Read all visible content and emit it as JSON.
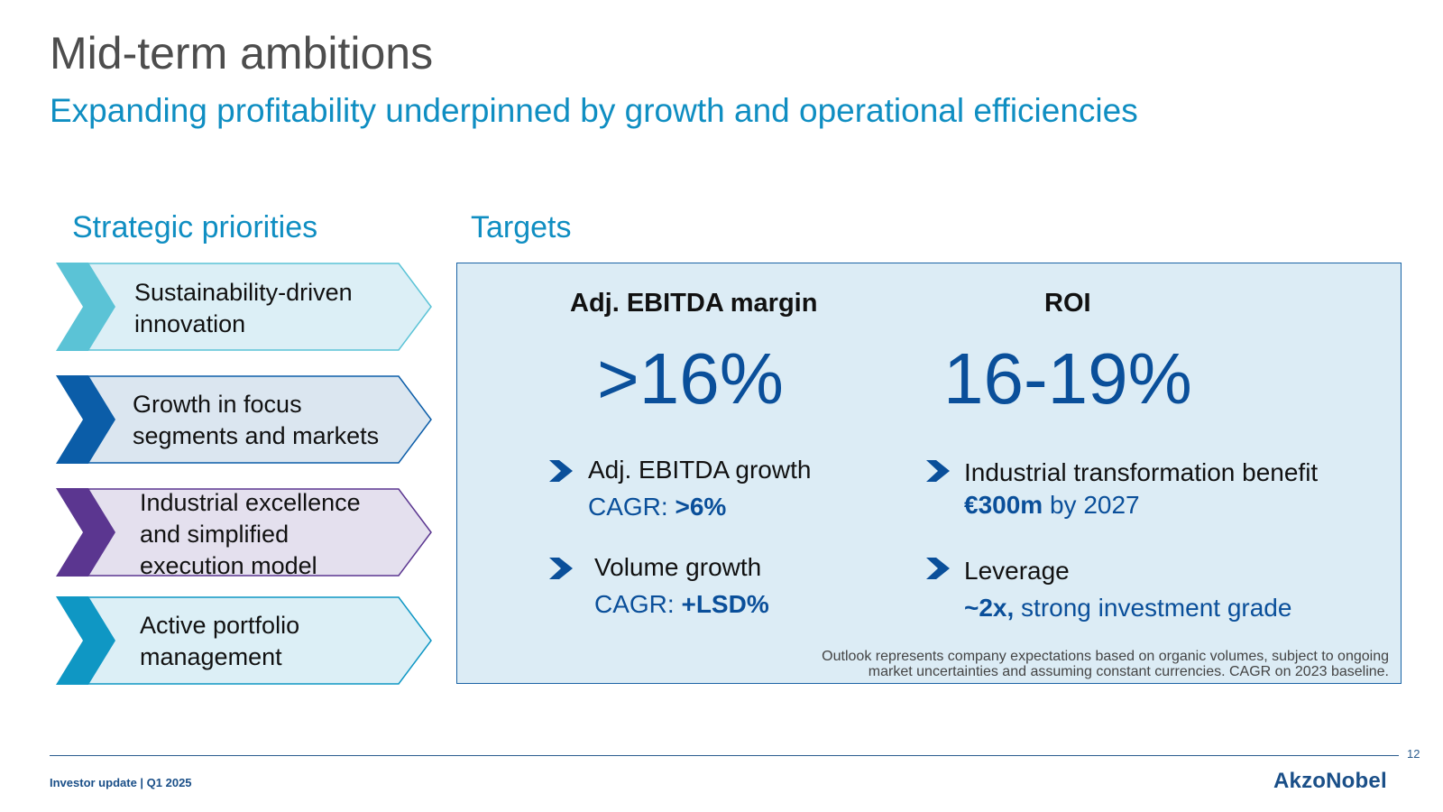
{
  "header": {
    "title": "Mid-term ambitions",
    "subtitle": "Expanding profitability underpinned by growth and operational efficiencies"
  },
  "priorities": {
    "heading": "Strategic priorities",
    "items": [
      {
        "label_lines": [
          "Sustainability-driven",
          "innovation"
        ],
        "accent": "#5bc3d6",
        "fill": "#dceff6"
      },
      {
        "label_lines": [
          "Growth in focus",
          "segments and markets"
        ],
        "accent": "#0b5da8",
        "fill": "#dbe6f0"
      },
      {
        "label_lines": [
          "Industrial excellence",
          "and simplified",
          "execution model"
        ],
        "accent": "#5b3690",
        "fill": "#e4e0ee"
      },
      {
        "label_lines": [
          "Active portfolio",
          "management"
        ],
        "accent": "#0f97c4",
        "fill": "#dceff6"
      }
    ]
  },
  "targets": {
    "heading": "Targets",
    "kpis": [
      {
        "label": "Adj. EBITDA margin",
        "value": ">16%"
      },
      {
        "label": "ROI",
        "value": "16-19%"
      }
    ],
    "bullets": [
      {
        "line1": "Adj. EBITDA growth",
        "line2_prefix": "CAGR: ",
        "line2_bold": ">6%",
        "line2_suffix": ""
      },
      {
        "line1": "Volume growth",
        "line2_prefix": "CAGR: ",
        "line2_bold": "+LSD%",
        "line2_suffix": ""
      },
      {
        "line1": "Industrial transformation benefit",
        "line2_prefix": "",
        "line2_bold": "€300m",
        "line2_suffix": " by 2027"
      },
      {
        "line1": "Leverage",
        "line2_prefix": "",
        "line2_bold": "~2x,",
        "line2_suffix": " strong investment grade"
      }
    ],
    "note_lines": [
      "Outlook represents company expectations based on organic volumes, subject to ongoing",
      "market uncertainties and assuming constant currencies. CAGR on 2023 baseline."
    ]
  },
  "footer": {
    "text": "Investor update | Q1 2025",
    "page_number": "12",
    "brand": "AkzoNobel"
  },
  "colors": {
    "title": "#4d4d4d",
    "accent_blue": "#0f8ec2",
    "dark_blue": "#0a4f9a",
    "panel_bg": "#dcecf5"
  }
}
